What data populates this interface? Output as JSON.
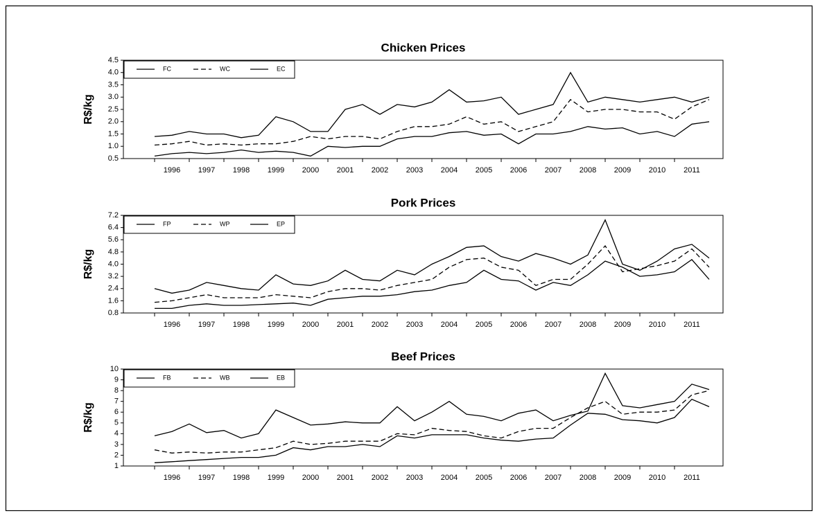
{
  "chart_data": [
    {
      "type": "line",
      "title": "Chicken Prices",
      "y_label": "R$/kg",
      "legend": "upper left",
      "x": [
        1995.5,
        1996,
        1996.5,
        1997,
        1997.5,
        1998,
        1998.5,
        1999,
        1999.5,
        2000,
        2000.5,
        2001,
        2001.5,
        2002,
        2002.5,
        2003,
        2003.5,
        2004,
        2004.5,
        2005,
        2005.5,
        2006,
        2006.5,
        2007,
        2007.5,
        2008,
        2008.5,
        2009,
        2009.5,
        2010,
        2010.5,
        2011,
        2011.5
      ],
      "xlim": [
        1994.6,
        2011.9
      ],
      "xticks": [
        1996,
        1997,
        1998,
        1999,
        2000,
        2001,
        2002,
        2003,
        2004,
        2005,
        2006,
        2007,
        2008,
        2009,
        2010,
        2011
      ],
      "ylim": [
        0.5,
        4.5
      ],
      "yticks": [
        {
          "value": 0.5,
          "label": "0.5"
        },
        {
          "value": 1,
          "label": "1.0"
        },
        {
          "value": 1.5,
          "label": "1.5"
        },
        {
          "value": 2,
          "label": "2.0"
        },
        {
          "value": 2.5,
          "label": "2.5"
        },
        {
          "value": 3,
          "label": "3.0"
        },
        {
          "value": 3.5,
          "label": "3.5"
        },
        {
          "value": 4,
          "label": "4.0"
        },
        {
          "value": 4.5,
          "label": "4.5"
        }
      ],
      "series": [
        {
          "name": "FC",
          "color": "#000000",
          "line_style": "solid",
          "values": [
            0.6,
            0.7,
            0.75,
            0.7,
            0.75,
            0.85,
            0.75,
            0.8,
            0.75,
            0.6,
            1.0,
            0.95,
            1.0,
            1.0,
            1.3,
            1.4,
            1.4,
            1.55,
            1.6,
            1.45,
            1.5,
            1.1,
            1.5,
            1.5,
            1.6,
            1.8,
            1.7,
            1.75,
            1.5,
            1.6,
            1.4,
            1.9,
            2.0
          ]
        },
        {
          "name": "WC",
          "color": "#000000",
          "line_style": "dashed",
          "values": [
            1.05,
            1.1,
            1.2,
            1.05,
            1.1,
            1.05,
            1.1,
            1.1,
            1.2,
            1.4,
            1.3,
            1.4,
            1.4,
            1.3,
            1.6,
            1.8,
            1.8,
            1.9,
            2.2,
            1.9,
            2.0,
            1.6,
            1.8,
            2.0,
            2.9,
            2.4,
            2.5,
            2.5,
            2.4,
            2.4,
            2.1,
            2.6,
            2.9
          ]
        },
        {
          "name": "EC",
          "color": "#000000",
          "line_style": "solid",
          "values": [
            1.4,
            1.45,
            1.6,
            1.5,
            1.5,
            1.35,
            1.45,
            2.2,
            2.0,
            1.6,
            1.6,
            2.5,
            2.7,
            2.3,
            2.7,
            2.6,
            2.8,
            3.3,
            2.8,
            2.85,
            3.0,
            2.3,
            2.5,
            2.7,
            4.0,
            2.8,
            3.0,
            2.9,
            2.8,
            2.9,
            3.0,
            2.8,
            3.0
          ]
        }
      ]
    },
    {
      "type": "line",
      "title": "Pork Prices",
      "y_label": "R$/kg",
      "legend": "upper left",
      "x": [
        1995.5,
        1996,
        1996.5,
        1997,
        1997.5,
        1998,
        1998.5,
        1999,
        1999.5,
        2000,
        2000.5,
        2001,
        2001.5,
        2002,
        2002.5,
        2003,
        2003.5,
        2004,
        2004.5,
        2005,
        2005.5,
        2006,
        2006.5,
        2007,
        2007.5,
        2008,
        2008.5,
        2009,
        2009.5,
        2010,
        2010.5,
        2011,
        2011.5
      ],
      "xlim": [
        1994.6,
        2011.9
      ],
      "xticks": [
        1996,
        1997,
        1998,
        1999,
        2000,
        2001,
        2002,
        2003,
        2004,
        2005,
        2006,
        2007,
        2008,
        2009,
        2010,
        2011
      ],
      "ylim": [
        0.8,
        7.2
      ],
      "yticks": [
        0.8,
        1.6,
        2.4,
        3.2,
        {
          "value": 4,
          "label": "4.0"
        },
        4.8,
        5.6,
        6.4,
        7.2
      ],
      "series": [
        {
          "name": "FP",
          "color": "#000000",
          "line_style": "solid",
          "values": [
            1.1,
            1.1,
            1.3,
            1.4,
            1.3,
            1.3,
            1.35,
            1.4,
            1.45,
            1.3,
            1.7,
            1.8,
            1.9,
            1.9,
            2.0,
            2.2,
            2.3,
            2.6,
            2.8,
            3.6,
            3.0,
            2.9,
            2.3,
            2.8,
            2.6,
            3.3,
            4.2,
            3.8,
            3.2,
            3.3,
            3.5,
            4.3,
            3.0
          ]
        },
        {
          "name": "WP",
          "color": "#000000",
          "line_style": "dashed",
          "values": [
            1.5,
            1.6,
            1.8,
            2.0,
            1.8,
            1.8,
            1.8,
            2.0,
            1.9,
            1.8,
            2.2,
            2.4,
            2.4,
            2.3,
            2.6,
            2.8,
            3.0,
            3.8,
            4.3,
            4.4,
            3.8,
            3.6,
            2.6,
            3.0,
            3.0,
            4.0,
            5.2,
            3.5,
            3.7,
            3.9,
            4.2,
            5.0,
            3.8
          ]
        },
        {
          "name": "EP",
          "color": "#000000",
          "line_style": "solid",
          "values": [
            2.4,
            2.1,
            2.3,
            2.8,
            2.6,
            2.4,
            2.3,
            3.3,
            2.7,
            2.6,
            2.9,
            3.6,
            3.0,
            2.9,
            3.6,
            3.3,
            4.0,
            4.5,
            5.1,
            5.2,
            4.5,
            4.2,
            4.7,
            4.4,
            4.0,
            4.6,
            6.9,
            4.0,
            3.6,
            4.2,
            5.0,
            5.3,
            4.4
          ]
        }
      ]
    },
    {
      "type": "line",
      "title": "Beef Prices",
      "y_label": "R$/kg",
      "legend": "upper left",
      "x": [
        1995.5,
        1996,
        1996.5,
        1997,
        1997.5,
        1998,
        1998.5,
        1999,
        1999.5,
        2000,
        2000.5,
        2001,
        2001.5,
        2002,
        2002.5,
        2003,
        2003.5,
        2004,
        2004.5,
        2005,
        2005.5,
        2006,
        2006.5,
        2007,
        2007.5,
        2008,
        2008.5,
        2009,
        2009.5,
        2010,
        2010.5,
        2011,
        2011.5
      ],
      "xlim": [
        1994.6,
        2011.9
      ],
      "xticks": [
        1996,
        1997,
        1998,
        1999,
        2000,
        2001,
        2002,
        2003,
        2004,
        2005,
        2006,
        2007,
        2008,
        2009,
        2010,
        2011
      ],
      "ylim": [
        1,
        10
      ],
      "yticks": [
        1,
        2,
        3,
        4,
        5,
        6,
        7,
        8,
        9,
        10
      ],
      "series": [
        {
          "name": "FB",
          "color": "#000000",
          "line_style": "solid",
          "values": [
            1.3,
            1.4,
            1.5,
            1.6,
            1.7,
            1.8,
            1.8,
            2.0,
            2.7,
            2.5,
            2.8,
            2.8,
            3.0,
            2.8,
            3.8,
            3.6,
            3.9,
            3.9,
            3.9,
            3.6,
            3.4,
            3.3,
            3.5,
            3.6,
            4.8,
            5.9,
            5.8,
            5.3,
            5.2,
            5.0,
            5.5,
            7.2,
            6.5
          ]
        },
        {
          "name": "WB",
          "color": "#000000",
          "line_style": "dashed",
          "values": [
            2.5,
            2.2,
            2.3,
            2.2,
            2.3,
            2.3,
            2.5,
            2.7,
            3.3,
            3.0,
            3.1,
            3.3,
            3.3,
            3.3,
            4.0,
            3.9,
            4.5,
            4.3,
            4.2,
            3.8,
            3.6,
            4.2,
            4.5,
            4.5,
            5.5,
            6.4,
            7.0,
            5.8,
            6.0,
            6.0,
            6.2,
            7.6,
            8.0
          ]
        },
        {
          "name": "EB",
          "color": "#000000",
          "line_style": "solid",
          "values": [
            3.8,
            4.2,
            4.9,
            4.1,
            4.3,
            3.6,
            4.0,
            6.2,
            5.5,
            4.8,
            4.9,
            5.1,
            5.0,
            5.0,
            6.5,
            5.2,
            6.0,
            7.0,
            5.8,
            5.6,
            5.2,
            5.9,
            6.2,
            5.2,
            5.7,
            6.1,
            9.6,
            6.6,
            6.4,
            6.7,
            7.0,
            8.6,
            8.1
          ]
        }
      ]
    }
  ]
}
